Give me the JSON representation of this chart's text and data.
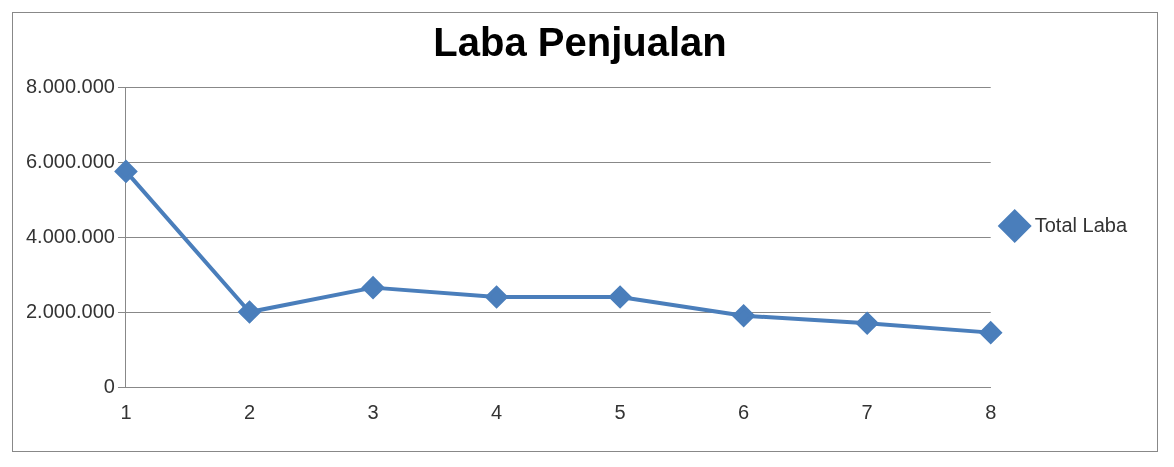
{
  "chart_data": {
    "type": "line",
    "title": "Laba Penjualan",
    "categories": [
      "1",
      "2",
      "3",
      "4",
      "5",
      "6",
      "7",
      "8"
    ],
    "series": [
      {
        "name": "Total Laba",
        "color": "#4a7ebb",
        "values": [
          5750000,
          2000000,
          2650000,
          2400000,
          2400000,
          1900000,
          1700000,
          1450000
        ]
      }
    ],
    "ylim": [
      0,
      8000000
    ],
    "yticks": [
      {
        "value": 0,
        "label": "0"
      },
      {
        "value": 2000000,
        "label": "2.000.000"
      },
      {
        "value": 4000000,
        "label": "4.000.000"
      },
      {
        "value": 6000000,
        "label": "6.000.000"
      },
      {
        "value": 8000000,
        "label": "8.000.000"
      }
    ],
    "grid": "y",
    "legend": "right",
    "marker": "diamond",
    "line_style": "solid"
  }
}
